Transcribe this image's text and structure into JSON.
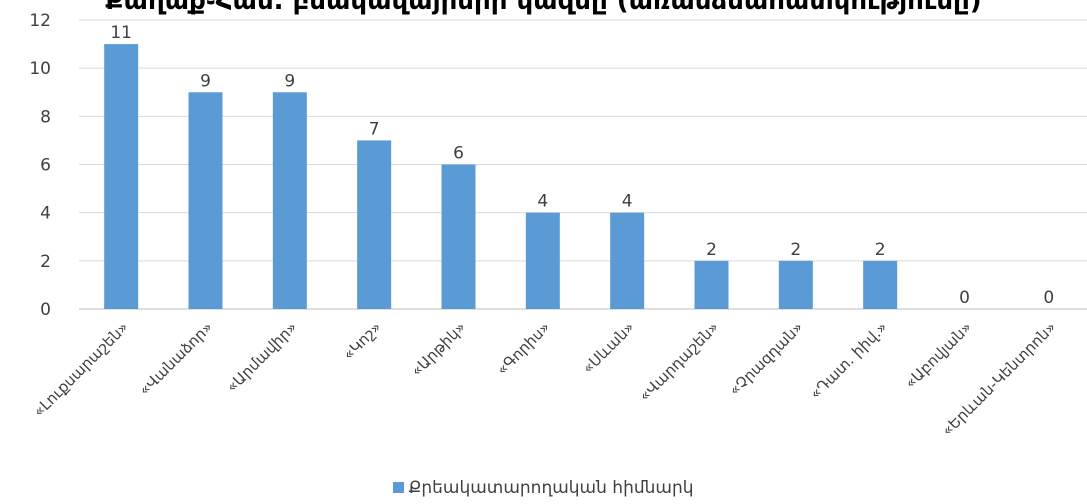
{
  "chart_data": {
    "type": "bar",
    "title": "Քաղաք֊Համ. բնակավայրերի կազմը (առանձնահատկությունը)",
    "categories": [
      "«Լուքսարաշեն»",
      "«Վանաձոր»",
      "«Արմավիր»",
      "«Կոշ»",
      "«Արթիկ»",
      "«Գորիս»",
      "«Սևան»",
      "«Վարդաշեն»",
      "«Չրազդան»",
      "«Դատ. իիվ.»",
      "«Աբովյան»",
      "«Երևան-Կենտրոն»"
    ],
    "series": [
      {
        "name": "Քրեակատարողական հիմնարկ",
        "values": [
          11,
          9,
          9,
          7,
          6,
          4,
          4,
          2,
          2,
          2,
          0,
          0
        ]
      }
    ],
    "ylim": [
      0,
      12
    ],
    "yticks": [
      "0",
      "2",
      "4",
      "6",
      "8",
      "10",
      "12"
    ],
    "data_labels": true,
    "grid": true,
    "legend_position": "bottom",
    "bar_color": "#5b9bd5"
  }
}
